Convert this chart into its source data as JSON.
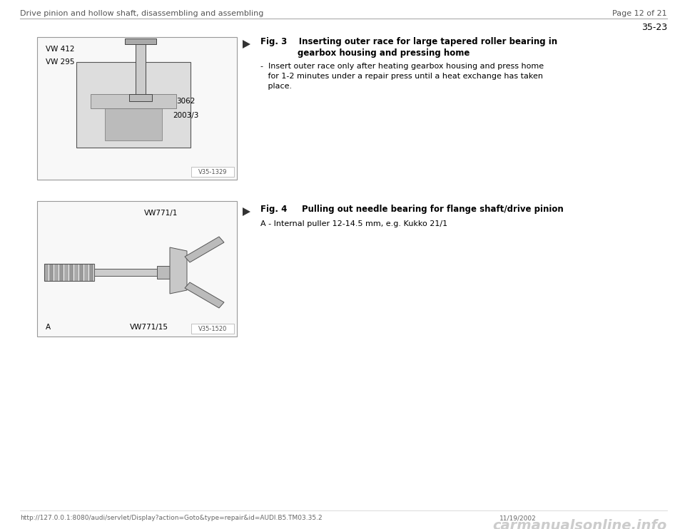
{
  "background_color": "#ffffff",
  "header_left": "Drive pinion and hollow shaft, disassembling and assembling",
  "header_right": "Page 12 of 21",
  "section_number": "35-23",
  "fig3_title_line1": "Fig. 3    Inserting outer race for large tapered roller bearing in",
  "fig3_title_line2": "gearbox housing and pressing home",
  "fig3_bullet": "-  Insert outer race only after heating gearbox housing and press home\n   for 1-2 minutes under a repair press until a heat exchange has taken\n   place.",
  "fig4_title": "Fig. 4     Pulling out needle bearing for flange shaft/drive pinion",
  "fig4_text": "A - Internal puller 12-14.5 mm, e.g. Kukko 21/1",
  "footer_left": "http://127.0.0.1:8080/audi/servlet/Display?action=Goto&type=repair&id=AUDI.B5.TM03.35.2",
  "footer_right": "11/19/2002",
  "footer_logo": "carmanualsonline.info",
  "image1_label": "V35-1329",
  "image2_label": "V35-1520",
  "text_color": "#000000",
  "border_color": "#888888",
  "header_color": "#555555",
  "footer_color": "#666666"
}
